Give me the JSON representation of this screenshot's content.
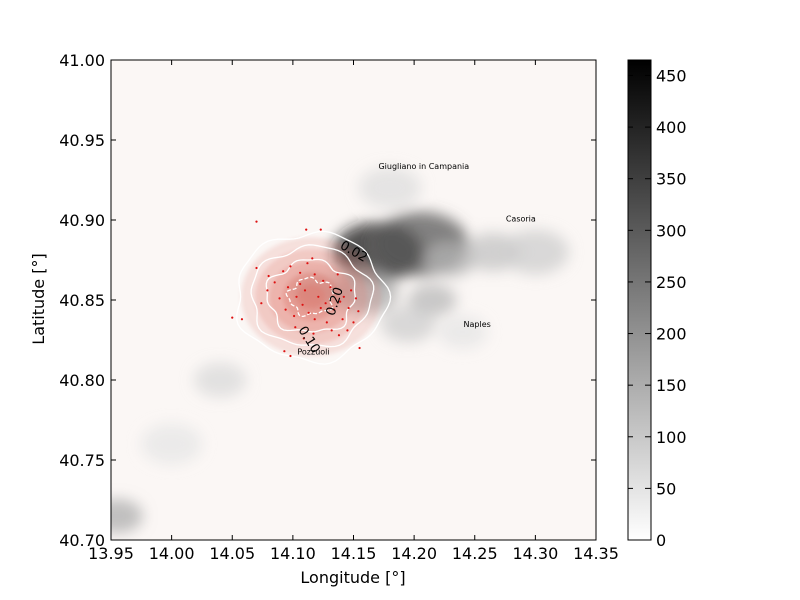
{
  "chart_data": {
    "type": "heatmap",
    "title": "",
    "xlabel": "Longitude [°]",
    "ylabel": "Latitude [°]",
    "xlim": [
      13.95,
      14.35
    ],
    "ylim": [
      40.7,
      41.0
    ],
    "x_ticks": [
      "13.95",
      "14.00",
      "14.05",
      "14.10",
      "14.15",
      "14.20",
      "14.25",
      "14.30",
      "14.35"
    ],
    "y_ticks": [
      "40.70",
      "40.75",
      "40.80",
      "40.85",
      "40.90",
      "40.95",
      "41.00"
    ],
    "colorbar": {
      "range": [
        0,
        465
      ],
      "ticks": [
        "0",
        "50",
        "100",
        "150",
        "200",
        "250",
        "300",
        "350",
        "400",
        "450"
      ],
      "colormap": "gray_r"
    },
    "grid": false,
    "background_color": "#fbf7f5",
    "overlay_color": "#e0796e",
    "event_color": "#dd1111",
    "contour_color": "#ffffff",
    "places": [
      {
        "name": "Giugliano in Campania",
        "lon": 14.208,
        "lat": 40.932
      },
      {
        "name": "Casoria",
        "lon": 14.288,
        "lat": 40.899
      },
      {
        "name": "Naples",
        "lon": 14.252,
        "lat": 40.833
      },
      {
        "name": "Pozzuoli",
        "lon": 14.117,
        "lat": 40.816
      }
    ],
    "contour_levels": [
      "0.02",
      "0.10",
      "0.20"
    ],
    "contour_labels": [
      {
        "text": "0.02",
        "lon": 14.15,
        "lat": 40.88,
        "angle": 30
      },
      {
        "text": "0.20",
        "lon": 14.135,
        "lat": 40.849,
        "angle": -72
      },
      {
        "text": "0.10",
        "lon": 14.113,
        "lat": 40.825,
        "angle": 58
      }
    ],
    "dem_highs": [
      {
        "lon": 14.17,
        "lat": 40.88,
        "value": 420
      },
      {
        "lon": 14.16,
        "lat": 40.855,
        "value": 160
      },
      {
        "lon": 14.205,
        "lat": 40.885,
        "value": 300
      },
      {
        "lon": 14.215,
        "lat": 40.85,
        "value": 130
      },
      {
        "lon": 14.195,
        "lat": 40.835,
        "value": 90
      },
      {
        "lon": 14.18,
        "lat": 40.92,
        "value": 60
      },
      {
        "lon": 14.23,
        "lat": 40.875,
        "value": 140
      },
      {
        "lon": 14.265,
        "lat": 40.88,
        "value": 110
      },
      {
        "lon": 14.3,
        "lat": 40.88,
        "value": 90
      },
      {
        "lon": 14.12,
        "lat": 40.855,
        "value": 150
      },
      {
        "lon": 14.04,
        "lat": 40.8,
        "value": 70
      },
      {
        "lon": 14.0,
        "lat": 40.76,
        "value": 45
      },
      {
        "lon": 13.955,
        "lat": 40.715,
        "value": 150
      },
      {
        "lon": 14.24,
        "lat": 40.83,
        "value": 50
      }
    ],
    "prob_peak": {
      "lon": 14.115,
      "lat": 40.852,
      "value": 0.3
    },
    "events": [
      {
        "lon": 14.07,
        "lat": 40.899
      },
      {
        "lon": 14.111,
        "lat": 40.894
      },
      {
        "lon": 14.123,
        "lat": 40.894
      },
      {
        "lon": 14.05,
        "lat": 40.839
      },
      {
        "lon": 14.058,
        "lat": 40.838
      },
      {
        "lon": 14.07,
        "lat": 40.87
      },
      {
        "lon": 14.08,
        "lat": 40.865
      },
      {
        "lon": 14.092,
        "lat": 40.868
      },
      {
        "lon": 14.098,
        "lat": 40.871
      },
      {
        "lon": 14.106,
        "lat": 40.86
      },
      {
        "lon": 14.112,
        "lat": 40.873
      },
      {
        "lon": 14.118,
        "lat": 40.866
      },
      {
        "lon": 14.125,
        "lat": 40.862
      },
      {
        "lon": 14.131,
        "lat": 40.858
      },
      {
        "lon": 14.137,
        "lat": 40.866
      },
      {
        "lon": 14.142,
        "lat": 40.852
      },
      {
        "lon": 14.146,
        "lat": 40.845
      },
      {
        "lon": 14.15,
        "lat": 40.836
      },
      {
        "lon": 14.154,
        "lat": 40.843
      },
      {
        "lon": 14.089,
        "lat": 40.851
      },
      {
        "lon": 14.094,
        "lat": 40.844
      },
      {
        "lon": 14.101,
        "lat": 40.84
      },
      {
        "lon": 14.103,
        "lat": 40.852
      },
      {
        "lon": 14.108,
        "lat": 40.847
      },
      {
        "lon": 14.113,
        "lat": 40.842
      },
      {
        "lon": 14.118,
        "lat": 40.838
      },
      {
        "lon": 14.123,
        "lat": 40.845
      },
      {
        "lon": 14.128,
        "lat": 40.836
      },
      {
        "lon": 14.132,
        "lat": 40.831
      },
      {
        "lon": 14.138,
        "lat": 40.828
      },
      {
        "lon": 14.141,
        "lat": 40.838
      },
      {
        "lon": 14.145,
        "lat": 40.831
      },
      {
        "lon": 14.155,
        "lat": 40.82
      },
      {
        "lon": 14.093,
        "lat": 40.818
      },
      {
        "lon": 14.098,
        "lat": 40.815
      },
      {
        "lon": 14.109,
        "lat": 40.826
      },
      {
        "lon": 14.117,
        "lat": 40.829
      },
      {
        "lon": 14.074,
        "lat": 40.848
      },
      {
        "lon": 14.079,
        "lat": 40.856
      },
      {
        "lon": 14.085,
        "lat": 40.861
      },
      {
        "lon": 14.096,
        "lat": 40.858
      },
      {
        "lon": 14.11,
        "lat": 40.856
      },
      {
        "lon": 14.121,
        "lat": 40.852
      },
      {
        "lon": 14.127,
        "lat": 40.848
      },
      {
        "lon": 14.134,
        "lat": 40.844
      },
      {
        "lon": 14.139,
        "lat": 40.849
      },
      {
        "lon": 14.148,
        "lat": 40.856
      },
      {
        "lon": 14.152,
        "lat": 40.851
      },
      {
        "lon": 14.102,
        "lat": 40.833
      },
      {
        "lon": 14.106,
        "lat": 40.867
      },
      {
        "lon": 14.116,
        "lat": 40.876
      }
    ]
  }
}
